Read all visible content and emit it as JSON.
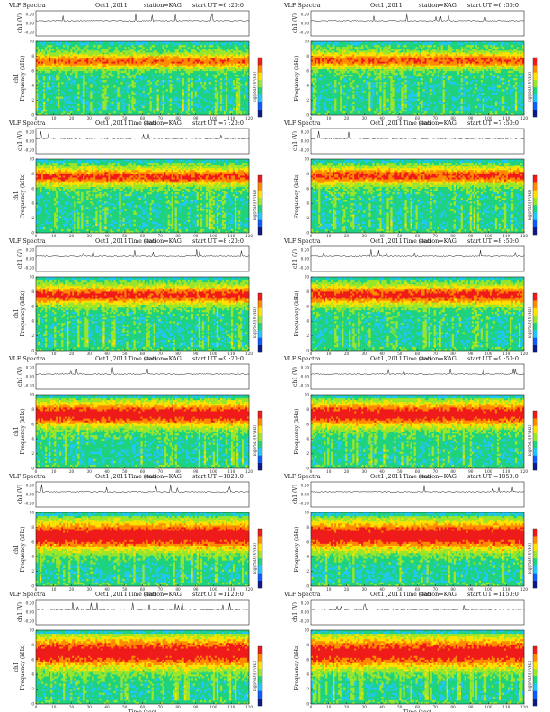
{
  "figure": {
    "colors": {
      "spectrogram_scale": [
        "#0b1a8a",
        "#0e5cff",
        "#22c6ff",
        "#1fd27e",
        "#9be62a",
        "#ffe100",
        "#ff8a00",
        "#f01a1a"
      ],
      "waveform": "#111111"
    }
  },
  "chart_data": [
    {
      "type": "heatmap",
      "instrument": "VLF Spectra",
      "date": "Oct1 ,2011",
      "station": "station=KAG",
      "start_label": "start UT",
      "start_time": "=6 :20:0",
      "xlabel": "Time (sec)",
      "ylabel_line1": "ch1",
      "ylabel_line2": "Frequency (kHz)",
      "waveform_label": "ch1 (V)",
      "colorbar_label": "log(PSD)(V²/Hz)",
      "x_ticks": [
        "0",
        "10",
        "20",
        "30",
        "40",
        "50",
        "60",
        "70",
        "80",
        "90",
        "100",
        "110",
        "120"
      ],
      "y_ticks": [
        "0",
        "2",
        "4",
        "6",
        "8",
        "10"
      ],
      "waveform_ticks": [
        "0.20",
        "0.00",
        "-0.20"
      ],
      "xlim": [
        0,
        120
      ],
      "ylim": [
        0,
        10
      ],
      "band_center_khz": 7.3,
      "band_width_khz": 1.2,
      "band_intensity": 0.85
    },
    {
      "type": "heatmap",
      "instrument": "VLF Spectra",
      "date": "Oct1 ,2011",
      "station": "station=KAG",
      "start_label": "start UT",
      "start_time": "=6 :50:0",
      "xlabel": "Time (sec)",
      "ylabel_line1": "",
      "ylabel_line2": "Frequency (kHz)",
      "waveform_label": "ch1 (V)",
      "colorbar_label": "log(PSD)(V²/Hz)",
      "x_ticks": [
        "0",
        "10",
        "20",
        "30",
        "40",
        "50",
        "60",
        "70",
        "80",
        "90",
        "100",
        "110",
        "120"
      ],
      "y_ticks": [
        "0",
        "2",
        "4",
        "6",
        "8",
        "10"
      ],
      "waveform_ticks": [
        "0.20",
        "0.00",
        "-0.20"
      ],
      "xlim": [
        0,
        120
      ],
      "ylim": [
        0,
        10
      ],
      "band_center_khz": 7.4,
      "band_width_khz": 1.3,
      "band_intensity": 0.9
    },
    {
      "type": "heatmap",
      "instrument": "VLF Spectra",
      "date": "Oct1 ,2011",
      "station": "station=KAG",
      "start_label": "start UT",
      "start_time": "=7 :20:0",
      "xlabel": "Time (sec)",
      "ylabel_line1": "ch1",
      "ylabel_line2": "Frequency (kHz)",
      "waveform_label": "ch1 (V)",
      "colorbar_label": "log(PSD)(V²/Hz)",
      "x_ticks": [
        "0",
        "10",
        "20",
        "30",
        "40",
        "50",
        "60",
        "70",
        "80",
        "90",
        "100",
        "110",
        "120"
      ],
      "y_ticks": [
        "0",
        "2",
        "4",
        "6",
        "8",
        "10"
      ],
      "waveform_ticks": [
        "0.20",
        "0.00",
        "-0.20"
      ],
      "xlim": [
        0,
        120
      ],
      "ylim": [
        0,
        10
      ],
      "band_center_khz": 7.6,
      "band_width_khz": 1.4,
      "band_intensity": 0.95
    },
    {
      "type": "heatmap",
      "instrument": "VLF Spectra",
      "date": "Oct1 ,2011",
      "station": "station=KAG",
      "start_label": "start UT",
      "start_time": "=7 :50:0",
      "xlabel": "Time (sec)",
      "ylabel_line1": "",
      "ylabel_line2": "Frequency (kHz)",
      "waveform_label": "ch1 (V)",
      "colorbar_label": "log(PSD)(V²/Hz)",
      "x_ticks": [
        "0",
        "10",
        "20",
        "30",
        "40",
        "50",
        "60",
        "70",
        "80",
        "90",
        "100",
        "110",
        "120"
      ],
      "y_ticks": [
        "0",
        "2",
        "4",
        "6",
        "8",
        "10"
      ],
      "waveform_ticks": [
        "0.20",
        "0.00",
        "-0.20"
      ],
      "xlim": [
        0,
        120
      ],
      "ylim": [
        0,
        10
      ],
      "band_center_khz": 7.7,
      "band_width_khz": 1.4,
      "band_intensity": 0.95
    },
    {
      "type": "heatmap",
      "instrument": "VLF Spectra",
      "date": "Oct1 ,2011",
      "station": "station=KAG",
      "start_label": "start UT",
      "start_time": "=8 :20:0",
      "xlabel": "Time (sec)",
      "ylabel_line1": "ch1",
      "ylabel_line2": "Frequency (kHz)",
      "waveform_label": "ch1 (V)",
      "colorbar_label": "log(PSD)(V²/Hz)",
      "x_ticks": [
        "0",
        "10",
        "20",
        "30",
        "40",
        "50",
        "60",
        "70",
        "80",
        "90",
        "100",
        "110",
        "120"
      ],
      "y_ticks": [
        "0",
        "2",
        "4",
        "6",
        "8",
        "10"
      ],
      "waveform_ticks": [
        "0.20",
        "0.00",
        "-0.20"
      ],
      "xlim": [
        0,
        120
      ],
      "ylim": [
        0,
        10
      ],
      "band_center_khz": 7.5,
      "band_width_khz": 1.5,
      "band_intensity": 1.0
    },
    {
      "type": "heatmap",
      "instrument": "VLF Spectra",
      "date": "Oct1 ,2011",
      "station": "station=KAG",
      "start_label": "start UT",
      "start_time": "=8 :50:0",
      "xlabel": "Time (sec)",
      "ylabel_line1": "",
      "ylabel_line2": "Frequency (kHz)",
      "waveform_label": "ch1 (V)",
      "colorbar_label": "log(PSD)(V²/Hz)",
      "x_ticks": [
        "0",
        "10",
        "20",
        "30",
        "40",
        "50",
        "60",
        "70",
        "80",
        "90",
        "100",
        "110",
        "120"
      ],
      "y_ticks": [
        "0",
        "2",
        "4",
        "6",
        "8",
        "10"
      ],
      "waveform_ticks": [
        "0.20",
        "0.00",
        "-0.20"
      ],
      "xlim": [
        0,
        120
      ],
      "ylim": [
        0,
        10
      ],
      "band_center_khz": 7.5,
      "band_width_khz": 1.6,
      "band_intensity": 1.0
    },
    {
      "type": "heatmap",
      "instrument": "VLF Spectra",
      "date": "Oct1 ,2011",
      "station": "station=KAG",
      "start_label": "start UT",
      "start_time": "=9 :20:0",
      "xlabel": "Time (sec)",
      "ylabel_line1": "ch1",
      "ylabel_line2": "Frequency (kHz)",
      "waveform_label": "ch1 (V)",
      "colorbar_label": "log(PSD)(V²/Hz)",
      "x_ticks": [
        "0",
        "10",
        "20",
        "30",
        "40",
        "50",
        "60",
        "70",
        "80",
        "90",
        "100",
        "110",
        "120"
      ],
      "y_ticks": [
        "0",
        "2",
        "4",
        "6",
        "8",
        "10"
      ],
      "waveform_ticks": [
        "0.20",
        "0.00",
        "-0.20"
      ],
      "xlim": [
        0,
        120
      ],
      "ylim": [
        0,
        10
      ],
      "band_center_khz": 7.3,
      "band_width_khz": 2.0,
      "band_intensity": 1.1
    },
    {
      "type": "heatmap",
      "instrument": "VLF Spectra",
      "date": "Oct1 ,2011",
      "station": "station=KAG",
      "start_label": "start UT",
      "start_time": "=9 :50:0",
      "xlabel": "Time (sec)",
      "ylabel_line1": "",
      "ylabel_line2": "Frequency (kHz)",
      "waveform_label": "ch1 (V)",
      "colorbar_label": "log(PSD)(V²/Hz)",
      "x_ticks": [
        "0",
        "10",
        "20",
        "30",
        "40",
        "50",
        "60",
        "70",
        "80",
        "90",
        "100",
        "110",
        "120"
      ],
      "y_ticks": [
        "0",
        "2",
        "4",
        "6",
        "8",
        "10"
      ],
      "waveform_ticks": [
        "0.20",
        "0.00",
        "-0.20"
      ],
      "xlim": [
        0,
        120
      ],
      "ylim": [
        0,
        10
      ],
      "band_center_khz": 7.3,
      "band_width_khz": 2.0,
      "band_intensity": 1.1
    },
    {
      "type": "heatmap",
      "instrument": "VLF Spectra",
      "date": "Oct1 ,2011",
      "station": "station=KAG",
      "start_label": "start UT",
      "start_time": "=1020:0",
      "xlabel": "Time (sec)",
      "ylabel_line1": "ch1",
      "ylabel_line2": "Frequency (kHz)",
      "waveform_label": "ch1 (V)",
      "colorbar_label": "log(PSD)(V²/Hz)",
      "x_ticks": [
        "0",
        "10",
        "20",
        "30",
        "40",
        "50",
        "60",
        "70",
        "80",
        "90",
        "100",
        "110",
        "120"
      ],
      "y_ticks": [
        "0",
        "2",
        "4",
        "6",
        "8",
        "10"
      ],
      "waveform_ticks": [
        "0.20",
        "0.00",
        "-0.20"
      ],
      "xlim": [
        0,
        120
      ],
      "ylim": [
        0,
        10
      ],
      "band_center_khz": 6.8,
      "band_width_khz": 2.4,
      "band_intensity": 1.15
    },
    {
      "type": "heatmap",
      "instrument": "VLF Spectra",
      "date": "Oct1 ,2011",
      "station": "station=KAG",
      "start_label": "start UT",
      "start_time": "=1050:0",
      "xlabel": "Time (sec)",
      "ylabel_line1": "",
      "ylabel_line2": "Frequency (kHz)",
      "waveform_label": "ch1 (V)",
      "colorbar_label": "log(PSD)(V²/Hz)",
      "x_ticks": [
        "0",
        "10",
        "20",
        "30",
        "40",
        "50",
        "60",
        "70",
        "80",
        "90",
        "100",
        "110",
        "120"
      ],
      "y_ticks": [
        "0",
        "2",
        "4",
        "6",
        "8",
        "10"
      ],
      "waveform_ticks": [
        "0.20",
        "0.00",
        "-0.20"
      ],
      "xlim": [
        0,
        120
      ],
      "ylim": [
        0,
        10
      ],
      "band_center_khz": 6.8,
      "band_width_khz": 2.4,
      "band_intensity": 1.15
    },
    {
      "type": "heatmap",
      "instrument": "VLF Spectra",
      "date": "Oct1 ,2011",
      "station": "station=KAG",
      "start_label": "start UT",
      "start_time": "=1120:0",
      "xlabel": "Time (sec)",
      "ylabel_line1": "ch1",
      "ylabel_line2": "Frequency (kHz)",
      "waveform_label": "ch1 (V)",
      "colorbar_label": "log(PSD)(V²/Hz)",
      "x_ticks": [
        "0",
        "10",
        "20",
        "30",
        "40",
        "50",
        "60",
        "70",
        "80",
        "90",
        "100",
        "110",
        "120"
      ],
      "y_ticks": [
        "0",
        "2",
        "4",
        "6",
        "8",
        "10"
      ],
      "waveform_ticks": [
        "0.20",
        "0.00",
        "-0.20"
      ],
      "xlim": [
        0,
        120
      ],
      "ylim": [
        0,
        10
      ],
      "band_center_khz": 6.9,
      "band_width_khz": 2.6,
      "band_intensity": 1.1
    },
    {
      "type": "heatmap",
      "instrument": "VLF Spectra",
      "date": "Oct1 ,2011",
      "station": "station=KAG",
      "start_label": "start UT",
      "start_time": "=1150:0",
      "xlabel": "Time (sec)",
      "ylabel_line1": "",
      "ylabel_line2": "Frequency (kHz)",
      "waveform_label": "ch1 (V)",
      "colorbar_label": "log(PSD)(V²/Hz)",
      "x_ticks": [
        "0",
        "10",
        "20",
        "30",
        "40",
        "50",
        "60",
        "70",
        "80",
        "90",
        "100",
        "110",
        "120"
      ],
      "y_ticks": [
        "0",
        "2",
        "4",
        "6",
        "8",
        "10"
      ],
      "waveform_ticks": [
        "0.20",
        "0.00",
        "-0.20"
      ],
      "xlim": [
        0,
        120
      ],
      "ylim": [
        0,
        10
      ],
      "band_center_khz": 6.9,
      "band_width_khz": 2.6,
      "band_intensity": 1.1
    }
  ]
}
